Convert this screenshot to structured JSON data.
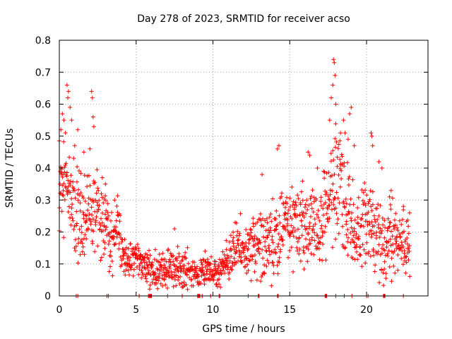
{
  "chart_data": {
    "type": "scatter",
    "title": "Day 278 of 2023, SRMTID for receiver acso",
    "xlabel": "GPS time / hours",
    "ylabel": "SRMTID / TECUs",
    "xlim": [
      0,
      24
    ],
    "ylim": [
      0,
      0.8
    ],
    "xticks": [
      0,
      5,
      10,
      15,
      20
    ],
    "xtick_labels": [
      "0",
      "5",
      "10",
      "15",
      "20"
    ],
    "yticks": [
      0,
      0.1,
      0.2,
      0.3,
      0.4,
      0.5,
      0.6,
      0.7,
      0.8
    ],
    "ytick_labels": [
      "0",
      "0.1",
      "0.2",
      "0.3",
      "0.4",
      "0.5",
      "0.6",
      "0.7",
      "0.8"
    ],
    "grid": true,
    "marker": "+",
    "color": "#ff0000",
    "x_start": 0.0,
    "x_step": 0.05,
    "envelope": [
      [
        0.0,
        0.35
      ],
      [
        0.5,
        0.38
      ],
      [
        1.0,
        0.25
      ],
      [
        1.5,
        0.22
      ],
      [
        2.0,
        0.28
      ],
      [
        2.5,
        0.25
      ],
      [
        3.0,
        0.22
      ],
      [
        3.5,
        0.15
      ],
      [
        3.8,
        0.25
      ],
      [
        4.2,
        0.12
      ],
      [
        5.0,
        0.12
      ],
      [
        5.5,
        0.1
      ],
      [
        6.0,
        0.08
      ],
      [
        7.0,
        0.08
      ],
      [
        8.0,
        0.08
      ],
      [
        9.0,
        0.07
      ],
      [
        9.5,
        0.08
      ],
      [
        10.0,
        0.07
      ],
      [
        10.5,
        0.08
      ],
      [
        11.0,
        0.12
      ],
      [
        12.0,
        0.15
      ],
      [
        13.0,
        0.15
      ],
      [
        14.0,
        0.18
      ],
      [
        15.0,
        0.25
      ],
      [
        16.0,
        0.22
      ],
      [
        17.0,
        0.22
      ],
      [
        17.5,
        0.3
      ],
      [
        18.0,
        0.35
      ],
      [
        18.5,
        0.28
      ],
      [
        19.0,
        0.22
      ],
      [
        19.5,
        0.2
      ],
      [
        20.0,
        0.25
      ],
      [
        20.5,
        0.22
      ],
      [
        21.0,
        0.15
      ],
      [
        22.0,
        0.18
      ],
      [
        22.8,
        0.15
      ]
    ],
    "spread": [
      [
        0.0,
        0.12
      ],
      [
        1.0,
        0.1
      ],
      [
        2.5,
        0.1
      ],
      [
        4.2,
        0.05
      ],
      [
        5.0,
        0.04
      ],
      [
        8.0,
        0.04
      ],
      [
        10.0,
        0.03
      ],
      [
        11.0,
        0.05
      ],
      [
        13.0,
        0.07
      ],
      [
        15.0,
        0.1
      ],
      [
        17.0,
        0.08
      ],
      [
        18.0,
        0.14
      ],
      [
        19.0,
        0.1
      ],
      [
        20.0,
        0.1
      ],
      [
        22.8,
        0.07
      ]
    ],
    "highlights": [
      [
        0.1,
        0.52
      ],
      [
        0.2,
        0.57
      ],
      [
        0.3,
        0.55
      ],
      [
        0.5,
        0.66
      ],
      [
        0.6,
        0.64
      ],
      [
        0.55,
        0.62
      ],
      [
        0.7,
        0.59
      ],
      [
        0.8,
        0.55
      ],
      [
        1.2,
        0.52
      ],
      [
        1.0,
        0.47
      ],
      [
        1.6,
        0.45
      ],
      [
        2.1,
        0.64
      ],
      [
        2.15,
        0.62
      ],
      [
        2.2,
        0.56
      ],
      [
        2.25,
        0.53
      ],
      [
        2.8,
        0.37
      ],
      [
        3.0,
        0.35
      ],
      [
        3.6,
        0.3
      ],
      [
        7.5,
        0.21
      ],
      [
        13.2,
        0.38
      ],
      [
        14.2,
        0.46
      ],
      [
        14.3,
        0.47
      ],
      [
        16.2,
        0.45
      ],
      [
        16.3,
        0.44
      ],
      [
        16.8,
        0.4
      ],
      [
        17.6,
        0.55
      ],
      [
        17.7,
        0.62
      ],
      [
        17.8,
        0.66
      ],
      [
        17.85,
        0.74
      ],
      [
        17.9,
        0.73
      ],
      [
        17.95,
        0.69
      ],
      [
        18.0,
        0.6
      ],
      [
        18.3,
        0.51
      ],
      [
        18.5,
        0.55
      ],
      [
        18.6,
        0.51
      ],
      [
        18.8,
        0.49
      ],
      [
        18.9,
        0.57
      ],
      [
        19.0,
        0.59
      ],
      [
        19.2,
        0.47
      ],
      [
        20.3,
        0.51
      ],
      [
        20.35,
        0.5
      ],
      [
        20.4,
        0.47
      ],
      [
        20.8,
        0.42
      ],
      [
        21.0,
        0.4
      ],
      [
        21.5,
        0.31
      ],
      [
        21.6,
        0.33
      ],
      [
        22.4,
        0.28
      ],
      [
        22.8,
        0.26
      ]
    ],
    "zero_points": [
      1.1,
      1.2,
      3.1,
      3.2,
      5.2,
      5.8,
      5.85,
      5.9,
      5.95,
      6.0,
      7.05,
      8.0,
      9.0,
      9.05,
      9.1,
      9.15,
      9.3,
      9.85,
      10.4,
      10.45,
      12.3,
      12.95,
      13.0,
      14.2,
      14.25,
      17.3,
      17.35,
      17.4,
      18.0,
      18.55,
      19.05,
      20.0,
      20.1,
      21.1,
      21.15,
      21.2,
      22.4
    ]
  }
}
